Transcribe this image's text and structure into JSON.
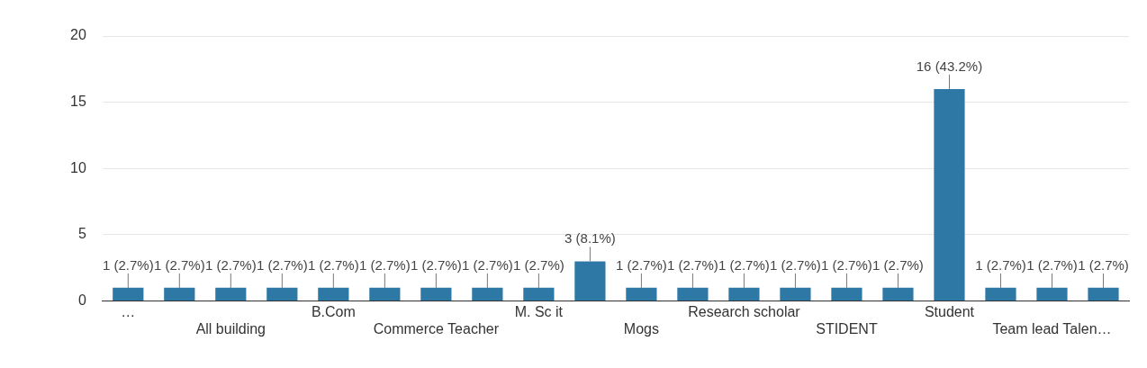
{
  "chart_data": {
    "type": "bar",
    "categories": [
      "…",
      null,
      "All building",
      null,
      "B.Com",
      null,
      "Commerce Teacher",
      null,
      "M. Sc it",
      null,
      "Mogs",
      null,
      "Research scholar",
      null,
      "STIDENT",
      null,
      "Student",
      null,
      "Team lead Talen…",
      null
    ],
    "values": [
      1,
      1,
      1,
      1,
      1,
      1,
      1,
      1,
      1,
      3,
      1,
      1,
      1,
      1,
      1,
      1,
      16,
      1,
      1,
      1
    ],
    "value_labels": [
      "1 (2.7%)",
      "1 (2.7%)",
      "1 (2.7%)",
      "1 (2.7%)",
      "1 (2.7%)",
      "1 (2.7%)",
      "1 (2.7%)",
      "1 (2.7%)",
      "1 (2.7%)",
      "3 (8.1%)",
      "1 (2.7%)",
      "1 (2.7%)",
      "1 (2.7%)",
      "1 (2.7%)",
      "1 (2.7%)",
      "1 (2.7%)",
      "16 (43.2%)",
      "1 (2.7%)",
      "1 (2.7%)",
      "1 (2.7%)"
    ],
    "color": "#2e78a5",
    "ylim": [
      0,
      20
    ],
    "yticks": [
      0,
      5,
      10,
      15,
      20
    ],
    "grid": "y"
  }
}
